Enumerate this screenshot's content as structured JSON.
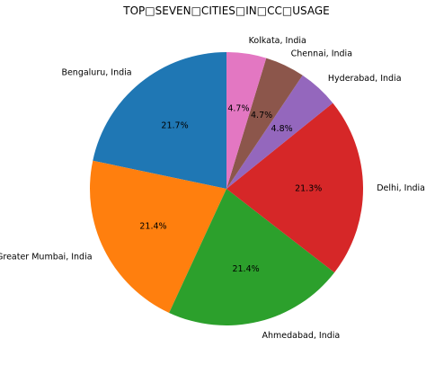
{
  "chart_data": {
    "type": "pie",
    "title": "TOP□SEVEN□CITIES□IN□CC□USAGE",
    "slices": [
      {
        "label": "Bengaluru, India",
        "value": 21.7,
        "pct_text": "21.7%",
        "color": "#1f77b4"
      },
      {
        "label": "Greater Mumbai, India",
        "value": 21.4,
        "pct_text": "21.4%",
        "color": "#ff7f0e"
      },
      {
        "label": "Ahmedabad, India",
        "value": 21.4,
        "pct_text": "21.4%",
        "color": "#2ca02c"
      },
      {
        "label": "Delhi, India",
        "value": 21.3,
        "pct_text": "21.3%",
        "color": "#d62728"
      },
      {
        "label": "Hyderabad, India",
        "value": 4.8,
        "pct_text": "4.8%",
        "color": "#9467bd"
      },
      {
        "label": "Chennai, India",
        "value": 4.7,
        "pct_text": "4.7%",
        "color": "#8c564b"
      },
      {
        "label": "Kolkata, India",
        "value": 4.7,
        "pct_text": "4.7%",
        "color": "#e377c2"
      }
    ],
    "start_angle": 90,
    "direction": "counterclockwise",
    "legend": "none"
  }
}
